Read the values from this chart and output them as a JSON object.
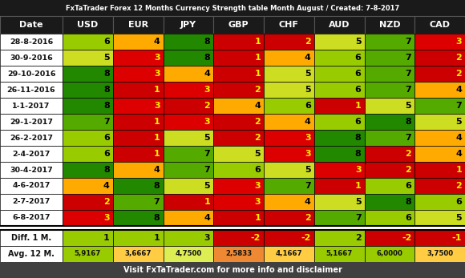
{
  "title": "FxTaTrader Forex 12 Months Currency Strength table Month August / Created: 7-8-2017",
  "footer": "Visit FxTaTrader.com for more info and disclaimer",
  "currencies": [
    "USD",
    "EUR",
    "JPY",
    "GBP",
    "CHF",
    "AUD",
    "NZD",
    "CAD"
  ],
  "rows": [
    {
      "date": "28-8-2016",
      "USD": 6,
      "EUR": 4,
      "JPY": 8,
      "GBP": 1,
      "CHF": 2,
      "AUD": 5,
      "NZD": 7,
      "CAD": 3
    },
    {
      "date": "30-9-2016",
      "USD": 5,
      "EUR": 3,
      "JPY": 8,
      "GBP": 1,
      "CHF": 4,
      "AUD": 6,
      "NZD": 7,
      "CAD": 2
    },
    {
      "date": "29-10-2016",
      "USD": 8,
      "EUR": 3,
      "JPY": 4,
      "GBP": 1,
      "CHF": 5,
      "AUD": 6,
      "NZD": 7,
      "CAD": 2
    },
    {
      "date": "26-11-2016",
      "USD": 8,
      "EUR": 1,
      "JPY": 3,
      "GBP": 2,
      "CHF": 5,
      "AUD": 6,
      "NZD": 7,
      "CAD": 4
    },
    {
      "date": "1-1-2017",
      "USD": 8,
      "EUR": 3,
      "JPY": 2,
      "GBP": 4,
      "CHF": 6,
      "AUD": 1,
      "NZD": 5,
      "CAD": 7
    },
    {
      "date": "29-1-2017",
      "USD": 7,
      "EUR": 1,
      "JPY": 3,
      "GBP": 2,
      "CHF": 4,
      "AUD": 6,
      "NZD": 8,
      "CAD": 5
    },
    {
      "date": "26-2-2017",
      "USD": 6,
      "EUR": 1,
      "JPY": 5,
      "GBP": 2,
      "CHF": 3,
      "AUD": 8,
      "NZD": 7,
      "CAD": 4
    },
    {
      "date": "2-4-2017",
      "USD": 6,
      "EUR": 1,
      "JPY": 7,
      "GBP": 5,
      "CHF": 3,
      "AUD": 8,
      "NZD": 2,
      "CAD": 4
    },
    {
      "date": "30-4-2017",
      "USD": 8,
      "EUR": 4,
      "JPY": 7,
      "GBP": 6,
      "CHF": 5,
      "AUD": 3,
      "NZD": 2,
      "CAD": 1
    },
    {
      "date": "4-6-2017",
      "USD": 4,
      "EUR": 8,
      "JPY": 5,
      "GBP": 3,
      "CHF": 7,
      "AUD": 1,
      "NZD": 6,
      "CAD": 2
    },
    {
      "date": "2-7-2017",
      "USD": 2,
      "EUR": 7,
      "JPY": 1,
      "GBP": 3,
      "CHF": 4,
      "AUD": 5,
      "NZD": 8,
      "CAD": 6
    },
    {
      "date": "6-8-2017",
      "USD": 3,
      "EUR": 8,
      "JPY": 4,
      "GBP": 1,
      "CHF": 2,
      "AUD": 7,
      "NZD": 6,
      "CAD": 5
    }
  ],
  "diff_row": {
    "USD": 1,
    "EUR": 1,
    "JPY": 3,
    "GBP": -2,
    "CHF": -2,
    "AUD": 2,
    "NZD": -2,
    "CAD": -1
  },
  "avg_row": {
    "USD": "5,9167",
    "EUR": "3,6667",
    "JPY": "4,7500",
    "GBP": "2,5833",
    "CHF": "4,1667",
    "AUD": "5,1667",
    "NZD": "6,0000",
    "CAD": "3,7500"
  },
  "avg_vals": {
    "USD": 5.9167,
    "EUR": 3.6667,
    "JPY": 4.75,
    "GBP": 2.5833,
    "CHF": 4.1667,
    "AUD": 5.1667,
    "NZD": 6.0,
    "CAD": 3.75
  },
  "color_map": {
    "1": "#cc0000",
    "2": "#cc0000",
    "3": "#dd0000",
    "4": "#ffaa00",
    "5": "#ccdd22",
    "6": "#99cc00",
    "7": "#55aa00",
    "8": "#228800"
  },
  "header_bg": "#1a1a1a",
  "title_bg": "#1a1a1a",
  "footer_bg": "#404040",
  "date_bg": "#ffffff",
  "diff_label_bg": "#ffffff",
  "avg_label_bg": "#ffffff",
  "diff_pos_bg": "#99cc00",
  "diff_neg_bg": "#cc0000",
  "diff_zero_bg": "#ffffff",
  "watermark_color": "#cc0000",
  "watermark_alpha": 0.12
}
